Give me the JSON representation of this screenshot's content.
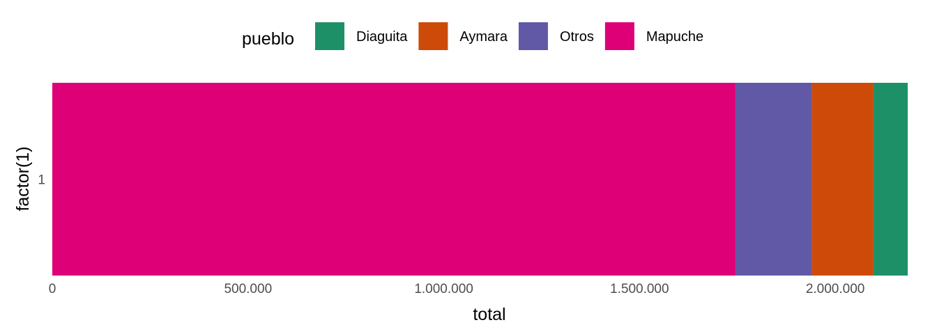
{
  "chart_data": {
    "type": "bar",
    "orientation": "horizontal",
    "stacked": true,
    "categories": [
      "1"
    ],
    "series": [
      {
        "name": "Mapuche",
        "values": [
          1745000
        ],
        "color": "#E7298A"
      },
      {
        "name": "Otros",
        "values": [
          195000
        ],
        "color": "#7570B3"
      },
      {
        "name": "Aymara",
        "values": [
          157000
        ],
        "color": "#D95F02"
      },
      {
        "name": "Diaguita",
        "values": [
          88000
        ],
        "color": "#1B9E77"
      }
    ],
    "xlabel": "total",
    "ylabel": "factor(1)",
    "xlim": [
      0,
      2185000
    ],
    "xticks": [
      0,
      500000,
      1000000,
      1500000,
      2000000
    ],
    "xtick_labels": [
      "0",
      "500.000",
      "1.000.000",
      "1.500.000",
      "2.000.000"
    ],
    "grid": false,
    "legend": {
      "title": "pueblo",
      "position": "top",
      "entries": [
        "Diaguita",
        "Aymara",
        "Otros",
        "Mapuche"
      ]
    },
    "colors": {
      "Mapuche": "#DD0077",
      "Otros": "#6159A5",
      "Aymara": "#CE4A09",
      "Diaguita": "#1E9068"
    }
  }
}
